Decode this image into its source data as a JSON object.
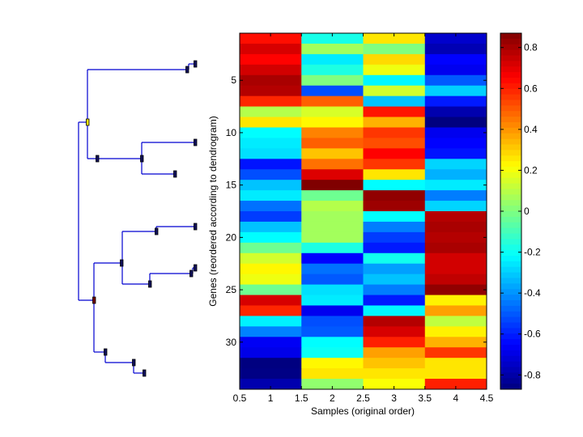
{
  "chart_data": {
    "type": "heatmap",
    "title": "",
    "xlabel": "Samples (original order)",
    "ylabel": "Genes (reordered according to dendrogram)",
    "x_ticks": [
      "0.5",
      "1",
      "1.5",
      "2",
      "2.5",
      "3",
      "3.5",
      "4",
      "4.5"
    ],
    "x_tick_values": [
      0.5,
      1,
      1.5,
      2,
      2.5,
      3,
      3.5,
      4,
      4.5
    ],
    "xlim": [
      0.5,
      4.5
    ],
    "y_ticks": [
      "5",
      "10",
      "15",
      "20",
      "25",
      "30"
    ],
    "y_tick_values": [
      5,
      10,
      15,
      20,
      25,
      30
    ],
    "ylim": [
      0.5,
      34.5
    ],
    "colormap": "jet",
    "clim": [
      -0.87,
      0.87
    ],
    "colorbar": {
      "ticks": [
        "-0.8",
        "-0.6",
        "-0.4",
        "-0.2",
        "0",
        "0.2",
        "0.4",
        "0.6",
        "0.8"
      ],
      "tick_values": [
        -0.8,
        -0.6,
        -0.4,
        -0.2,
        0,
        0.2,
        0.4,
        0.6,
        0.8
      ]
    },
    "grid": false,
    "legend": "none",
    "columns": [
      1,
      2,
      3,
      4
    ],
    "rows": [
      [
        0.63,
        -0.18,
        0.26,
        -0.74
      ],
      [
        0.72,
        0.06,
        0.0,
        -0.78
      ],
      [
        0.65,
        -0.25,
        0.28,
        -0.65
      ],
      [
        0.73,
        -0.17,
        0.19,
        -0.68
      ],
      [
        0.8,
        0.0,
        -0.23,
        -0.5
      ],
      [
        0.78,
        -0.52,
        0.14,
        -0.3
      ],
      [
        0.59,
        0.49,
        -0.32,
        -0.61
      ],
      [
        0.09,
        0.15,
        0.62,
        -0.79
      ],
      [
        0.26,
        0.23,
        0.35,
        -0.87
      ],
      [
        -0.22,
        0.43,
        0.56,
        -0.68
      ],
      [
        -0.25,
        0.49,
        0.52,
        -0.65
      ],
      [
        -0.27,
        0.32,
        0.65,
        -0.62
      ],
      [
        -0.62,
        0.46,
        0.56,
        -0.29
      ],
      [
        -0.52,
        0.71,
        0.26,
        -0.35
      ],
      [
        -0.32,
        0.87,
        -0.22,
        -0.25
      ],
      [
        -0.25,
        -0.03,
        0.84,
        -0.44
      ],
      [
        -0.46,
        0.09,
        0.82,
        -0.29
      ],
      [
        -0.55,
        0.06,
        -0.22,
        0.78
      ],
      [
        -0.32,
        0.06,
        -0.44,
        0.8
      ],
      [
        -0.22,
        0.06,
        -0.55,
        0.78
      ],
      [
        -0.03,
        -0.17,
        -0.61,
        0.8
      ],
      [
        0.14,
        -0.65,
        -0.19,
        0.73
      ],
      [
        0.23,
        -0.46,
        -0.38,
        0.73
      ],
      [
        0.19,
        -0.5,
        -0.32,
        0.76
      ],
      [
        -0.03,
        -0.27,
        -0.44,
        0.84
      ],
      [
        0.72,
        -0.25,
        -0.61,
        0.24
      ],
      [
        0.59,
        -0.68,
        -0.23,
        0.38
      ],
      [
        -0.24,
        -0.52,
        0.78,
        0.11
      ],
      [
        -0.43,
        -0.5,
        0.72,
        0.24
      ],
      [
        -0.67,
        -0.22,
        0.6,
        0.35
      ],
      [
        -0.69,
        -0.2,
        0.38,
        0.56
      ],
      [
        -0.87,
        0.23,
        0.32,
        0.26
      ],
      [
        -0.86,
        0.26,
        0.26,
        0.26
      ],
      [
        -0.79,
        0.03,
        0.21,
        0.6
      ]
    ],
    "dendrogram": {
      "orientation": "left",
      "line_color": "#0000d0",
      "marker_color": "#10105a",
      "highlight_markers": [
        {
          "node": "root-upper",
          "color": "#f0e010"
        },
        {
          "node": "root-lower",
          "color": "#700000"
        }
      ],
      "note": "hierarchical clustering tree of genes drawn to the left of the heatmap"
    }
  }
}
